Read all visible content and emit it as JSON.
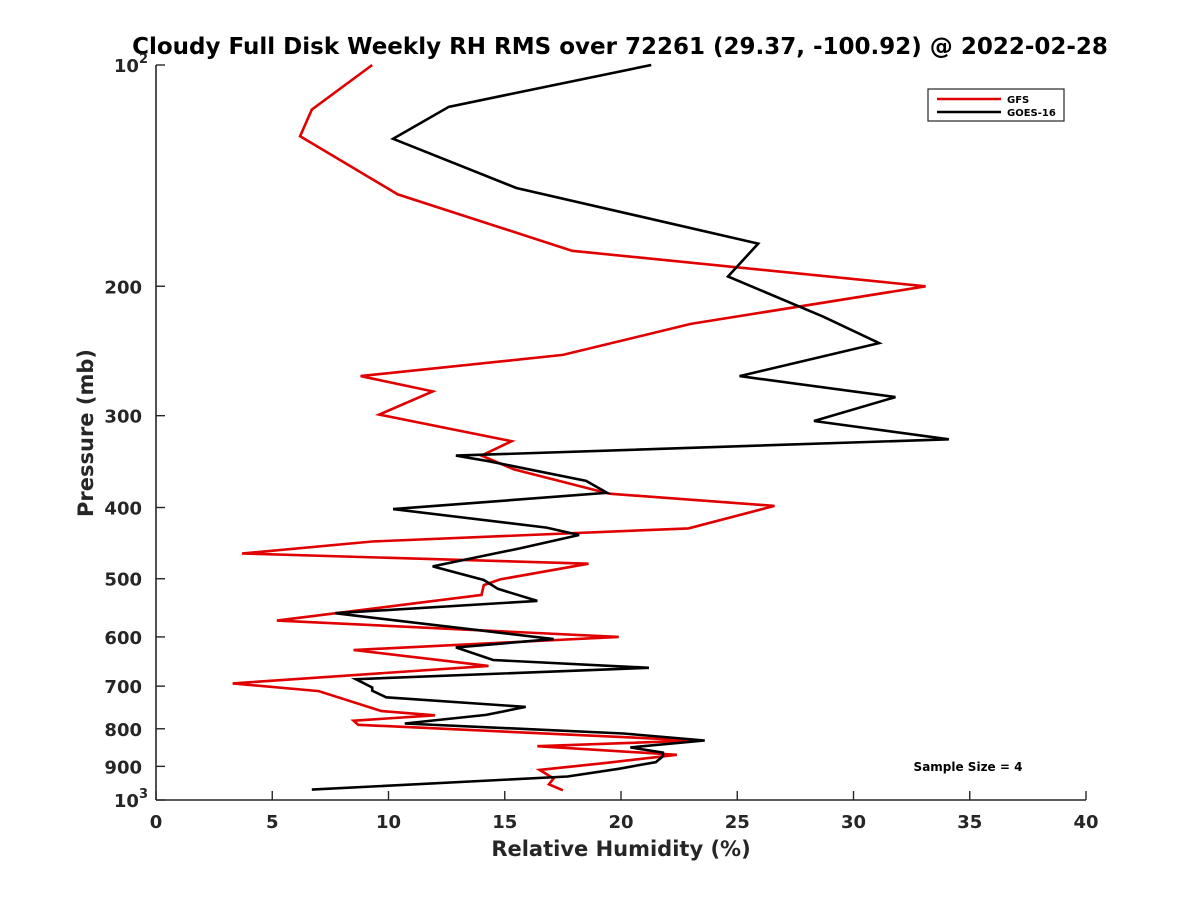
{
  "chart_data": {
    "type": "line",
    "title": "Cloudy Full Disk Weekly RH RMS over 72261 (29.37, -100.92) @ 2022-02-28",
    "xlabel": "Relative Humidity (%)",
    "ylabel": "Pressure (mb)",
    "xlim": [
      0,
      40
    ],
    "ylim": [
      100,
      1000
    ],
    "yscale": "log",
    "y_reversed": true,
    "grid": false,
    "legend_position": "top-right",
    "x_ticks": [
      "0",
      "5",
      "10",
      "15",
      "20",
      "25",
      "30",
      "35",
      "40"
    ],
    "y_ticks": [
      {
        "value": 100,
        "base": "10",
        "exp": "2"
      },
      {
        "value": 200,
        "label": "200"
      },
      {
        "value": 300,
        "label": "300"
      },
      {
        "value": 400,
        "label": "400"
      },
      {
        "value": 500,
        "label": "500"
      },
      {
        "value": 600,
        "label": "600"
      },
      {
        "value": 700,
        "label": "700"
      },
      {
        "value": 800,
        "label": "800"
      },
      {
        "value": 900,
        "label": "900"
      },
      {
        "value": 1000,
        "base": "10",
        "exp": "3"
      }
    ],
    "annotation": "Sample Size = 4",
    "series": [
      {
        "name": "GFS",
        "color": "#e00000",
        "points": [
          [
            9.3,
            100
          ],
          [
            6.7,
            115
          ],
          [
            6.2,
            125
          ],
          [
            10.4,
            150
          ],
          [
            17.9,
            179
          ],
          [
            33.1,
            200
          ],
          [
            23.0,
            225
          ],
          [
            17.5,
            248
          ],
          [
            8.8,
            265
          ],
          [
            11.9,
            278
          ],
          [
            9.6,
            299
          ],
          [
            15.3,
            325
          ],
          [
            14.0,
            340
          ],
          [
            15.4,
            355
          ],
          [
            19.5,
            383
          ],
          [
            26.6,
            398
          ],
          [
            22.9,
            427
          ],
          [
            9.3,
            445
          ],
          [
            3.7,
            462
          ],
          [
            18.6,
            477
          ],
          [
            14.8,
            501
          ],
          [
            14.1,
            510
          ],
          [
            14.0,
            526
          ],
          [
            5.2,
            570
          ],
          [
            19.9,
            600
          ],
          [
            8.5,
            625
          ],
          [
            14.3,
            657
          ],
          [
            3.3,
            694
          ],
          [
            7.0,
            711
          ],
          [
            9.7,
            757
          ],
          [
            12.0,
            767
          ],
          [
            8.5,
            780
          ],
          [
            8.7,
            790
          ],
          [
            23.2,
            830
          ],
          [
            16.4,
            845
          ],
          [
            22.4,
            868
          ],
          [
            19.4,
            890
          ],
          [
            16.5,
            910
          ],
          [
            17.1,
            935
          ],
          [
            16.9,
            952
          ],
          [
            17.5,
            970
          ]
        ]
      },
      {
        "name": "GOES-16",
        "color": "#000000",
        "points": [
          [
            21.3,
            100
          ],
          [
            12.6,
            114
          ],
          [
            10.2,
            126
          ],
          [
            15.5,
            147
          ],
          [
            25.9,
            175
          ],
          [
            24.6,
            194
          ],
          [
            28.7,
            220
          ],
          [
            31.1,
            239
          ],
          [
            25.1,
            265
          ],
          [
            31.8,
            283
          ],
          [
            28.3,
            305
          ],
          [
            34.1,
            323
          ],
          [
            12.9,
            340
          ],
          [
            14.3,
            346
          ],
          [
            18.5,
            368
          ],
          [
            19.4,
            382
          ],
          [
            10.2,
            402
          ],
          [
            16.8,
            426
          ],
          [
            18.2,
            436
          ],
          [
            15.6,
            455
          ],
          [
            11.9,
            481
          ],
          [
            14.1,
            502
          ],
          [
            14.7,
            516
          ],
          [
            16.4,
            536
          ],
          [
            7.7,
            557
          ],
          [
            17.1,
            604
          ],
          [
            12.9,
            620
          ],
          [
            14.5,
            645
          ],
          [
            21.2,
            661
          ],
          [
            8.6,
            685
          ],
          [
            9.3,
            703
          ],
          [
            9.3,
            710
          ],
          [
            9.9,
            725
          ],
          [
            15.9,
            747
          ],
          [
            14.2,
            766
          ],
          [
            10.7,
            787
          ],
          [
            20.1,
            812
          ],
          [
            23.6,
            830
          ],
          [
            20.4,
            848
          ],
          [
            21.8,
            862
          ],
          [
            21.8,
            872
          ],
          [
            21.5,
            888
          ],
          [
            19.9,
            907
          ],
          [
            17.7,
            929
          ],
          [
            6.7,
            968
          ]
        ]
      }
    ]
  }
}
